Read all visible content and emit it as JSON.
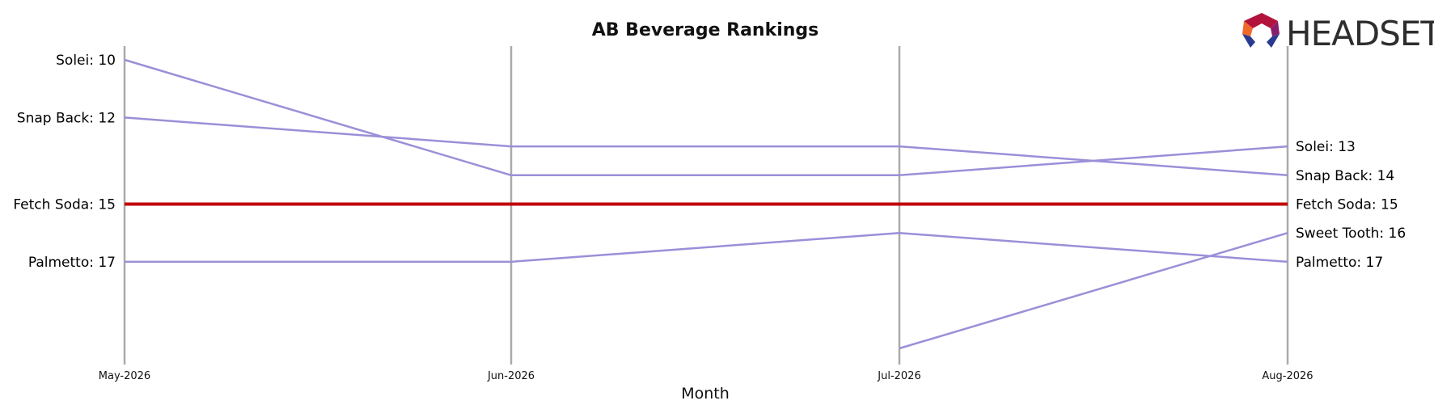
{
  "chart_data": {
    "type": "line",
    "title": "AB Beverage Rankings",
    "xlabel": "Month",
    "categories": [
      "May-2026",
      "Jun-2026",
      "Jul-2026",
      "Aug-2026"
    ],
    "y_axis": "rank (inverted)",
    "ylim": [
      20,
      9
    ],
    "grid": false,
    "series": [
      {
        "name": "Solei",
        "values": [
          10,
          14,
          14,
          13
        ],
        "color": "#9b8fd8",
        "highlight": false
      },
      {
        "name": "Snap Back",
        "values": [
          12,
          13,
          13,
          14
        ],
        "color": "#9b8fd8",
        "highlight": false
      },
      {
        "name": "Fetch Soda",
        "values": [
          15,
          15,
          15,
          15
        ],
        "color": "#c00000",
        "highlight": true
      },
      {
        "name": "Palmetto",
        "values": [
          17,
          17,
          16,
          17
        ],
        "color": "#9b8fd8",
        "highlight": false
      },
      {
        "name": "Sweet Tooth",
        "values": [
          null,
          null,
          20,
          16
        ],
        "color": "#9b8fd8",
        "highlight": false
      }
    ],
    "left_labels": [
      {
        "text": "Solei: 10",
        "rank": 10,
        "highlight": false
      },
      {
        "text": "Snap Back: 12",
        "rank": 12,
        "highlight": false
      },
      {
        "text": "Fetch Soda: 15",
        "rank": 15,
        "highlight": true
      },
      {
        "text": "Palmetto: 17",
        "rank": 17,
        "highlight": false
      }
    ],
    "right_labels": [
      {
        "text": "Solei: 13",
        "rank": 13,
        "highlight": false
      },
      {
        "text": "Snap Back: 14",
        "rank": 14,
        "highlight": false
      },
      {
        "text": "Fetch Soda: 15",
        "rank": 15,
        "highlight": true
      },
      {
        "text": "Sweet Tooth: 16",
        "rank": 16,
        "highlight": false
      },
      {
        "text": "Palmetto: 17",
        "rank": 17,
        "highlight": false
      }
    ]
  },
  "logo": {
    "text": "HEADSET"
  },
  "colors": {
    "series": "#9b8fd8",
    "highlight": "#c00000",
    "axis": "#aaaaaa"
  }
}
